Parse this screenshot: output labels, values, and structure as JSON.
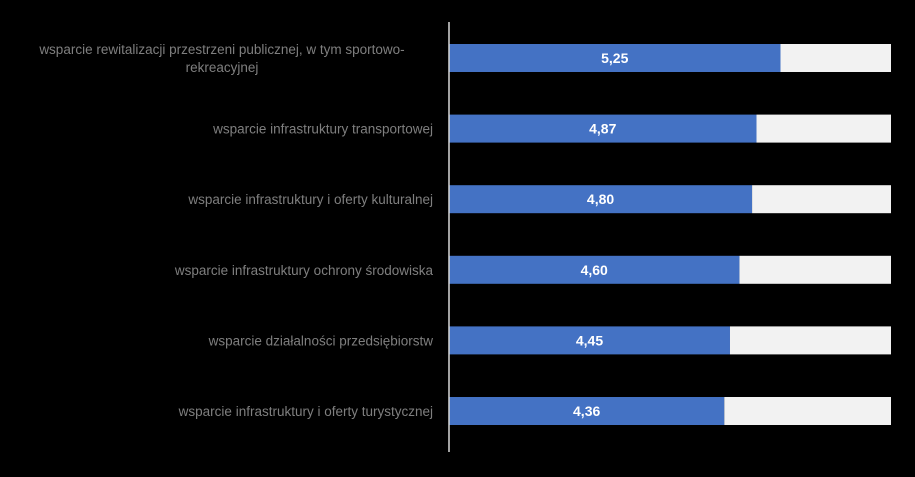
{
  "chart_data": {
    "type": "bar",
    "orientation": "horizontal",
    "stacked": true,
    "categories": [
      "wsparcie rewitalizacji przestrzeni publicznej, w tym sportowo-rekreacyjnej",
      "wsparcie infrastruktury transportowej",
      "wsparcie infrastruktury i oferty kulturalnej",
      "wsparcie infrastruktury ochrony środowiska",
      "wsparcie działalności przedsiębiorstw",
      "wsparcie infrastruktury i oferty turystycznej"
    ],
    "category_lines": [
      [
        "wsparcie rewitalizacji przestrzeni publicznej, w tym sportowo-",
        "rekreacyjnej"
      ],
      [
        "wsparcie infrastruktury transportowej"
      ],
      [
        "wsparcie infrastruktury i oferty kulturalnej"
      ],
      [
        "wsparcie infrastruktury ochrony środowiska"
      ],
      [
        "wsparcie działalności przedsiębiorstw"
      ],
      [
        "wsparcie infrastruktury i oferty turystycznej"
      ]
    ],
    "series": [
      {
        "values": [
          5.25,
          4.87,
          4.8,
          4.6,
          4.45,
          4.36
        ],
        "labels": [
          "5,25",
          "4,87",
          "4,80",
          "4,60",
          "4,45",
          "4,36"
        ],
        "color": "#4472C4"
      },
      {
        "values": [
          1.75,
          2.13,
          2.2,
          2.4,
          2.55,
          2.64
        ],
        "color": "#F2F2F2"
      }
    ],
    "xlim": [
      0,
      7
    ],
    "title": "",
    "xlabel": "",
    "ylabel": "",
    "grid": false,
    "legend": "none",
    "colors": {
      "background": "#000000",
      "axis": "#D9D9D9",
      "category_text": "#7F7F7F",
      "value_label": "#FFFFFF"
    }
  }
}
